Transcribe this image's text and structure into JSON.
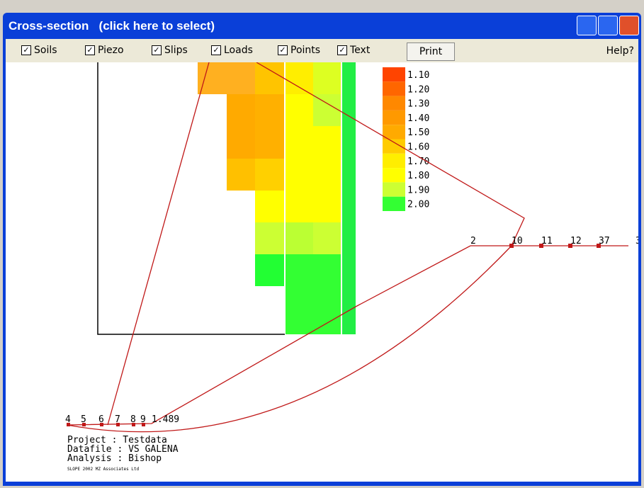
{
  "window": {
    "title": "Cross-section   (click here to select)"
  },
  "toolbar": {
    "checkboxes": [
      "Soils",
      "Piezo",
      "Slips",
      "Loads",
      "Points",
      "Text"
    ],
    "print": "Print",
    "help": "Help?"
  },
  "legend": [
    "1.10",
    "1.20",
    "1.30",
    "1.40",
    "1.50",
    "1.60",
    "1.70",
    "1.80",
    "1.90",
    "2.00"
  ],
  "points": {
    "right": [
      "2",
      "10",
      "11",
      "12",
      "37",
      "3"
    ],
    "left": [
      "4",
      "5",
      "6",
      "7",
      "8",
      "9"
    ]
  },
  "factor": "1.489",
  "info": [
    "Project   : Testdata",
    "Datafile  : VS GALENA",
    "Analysis  : Bishop"
  ],
  "copyright": "SLOPE 2002 MZ Associates Ltd"
}
